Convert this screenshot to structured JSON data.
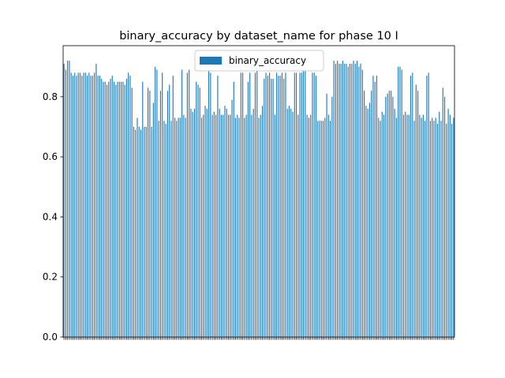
{
  "chart_data": {
    "type": "bar",
    "title": "binary_accuracy by dataset_name for phase 10 I",
    "legend": {
      "position": "top-center",
      "entries": [
        "binary_accuracy"
      ]
    },
    "ylim": [
      0,
      0.97
    ],
    "yticks": [
      0.0,
      0.2,
      0.4,
      0.6,
      0.8
    ],
    "ytick_labels": [
      "0.0",
      "0.2",
      "0.4",
      "0.6",
      "0.8"
    ],
    "grid": false,
    "colors": {
      "bar": "#1f77b4",
      "axes": "#000000",
      "legend_border": "#cccccc"
    },
    "series": [
      {
        "name": "binary_accuracy",
        "values": [
          0.91,
          0.89,
          0.92,
          0.92,
          0.88,
          0.87,
          0.88,
          0.87,
          0.88,
          0.88,
          0.87,
          0.88,
          0.88,
          0.87,
          0.88,
          0.87,
          0.87,
          0.88,
          0.91,
          0.87,
          0.87,
          0.86,
          0.85,
          0.85,
          0.84,
          0.85,
          0.86,
          0.87,
          0.85,
          0.84,
          0.85,
          0.85,
          0.85,
          0.85,
          0.84,
          0.86,
          0.88,
          0.87,
          0.83,
          0.7,
          0.69,
          0.73,
          0.7,
          0.69,
          0.85,
          0.7,
          0.7,
          0.83,
          0.82,
          0.7,
          0.78,
          0.9,
          0.89,
          0.72,
          0.82,
          0.88,
          0.72,
          0.71,
          0.82,
          0.84,
          0.72,
          0.87,
          0.73,
          0.72,
          0.73,
          0.73,
          0.89,
          0.74,
          0.73,
          0.88,
          0.89,
          0.76,
          0.75,
          0.76,
          0.85,
          0.84,
          0.83,
          0.73,
          0.74,
          0.77,
          0.76,
          0.89,
          0.88,
          0.74,
          0.75,
          0.74,
          0.87,
          0.76,
          0.74,
          0.74,
          0.77,
          0.76,
          0.74,
          0.74,
          0.79,
          0.85,
          0.73,
          0.74,
          0.73,
          0.88,
          0.88,
          0.73,
          0.74,
          0.85,
          0.88,
          0.74,
          0.76,
          0.88,
          0.89,
          0.73,
          0.74,
          0.77,
          0.86,
          0.88,
          0.87,
          0.88,
          0.86,
          0.86,
          0.74,
          0.88,
          0.87,
          0.87,
          0.88,
          0.86,
          0.88,
          0.76,
          0.77,
          0.76,
          0.75,
          0.88,
          0.88,
          0.74,
          0.88,
          0.88,
          0.89,
          0.89,
          0.74,
          0.73,
          0.74,
          0.88,
          0.88,
          0.87,
          0.72,
          0.72,
          0.72,
          0.72,
          0.73,
          0.81,
          0.74,
          0.72,
          0.8,
          0.92,
          0.91,
          0.92,
          0.91,
          0.91,
          0.92,
          0.91,
          0.91,
          0.9,
          0.91,
          0.91,
          0.92,
          0.91,
          0.92,
          0.9,
          0.91,
          0.89,
          0.82,
          0.77,
          0.76,
          0.78,
          0.82,
          0.87,
          0.85,
          0.87,
          0.73,
          0.72,
          0.75,
          0.74,
          0.8,
          0.81,
          0.82,
          0.82,
          0.8,
          0.76,
          0.73,
          0.9,
          0.9,
          0.89,
          0.74,
          0.75,
          0.74,
          0.74,
          0.87,
          0.88,
          0.72,
          0.84,
          0.82,
          0.74,
          0.73,
          0.74,
          0.72,
          0.87,
          0.88,
          0.72,
          0.73,
          0.72,
          0.73,
          0.71,
          0.75,
          0.72,
          0.83,
          0.8,
          0.71,
          0.76,
          0.74,
          0.71,
          0.73
        ]
      }
    ]
  }
}
